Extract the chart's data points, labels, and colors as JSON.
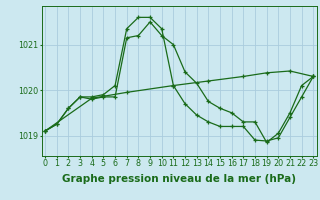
{
  "background_color": "#cce8f0",
  "grid_color": "#aaccdd",
  "line_color": "#1a6b1a",
  "xlabel": "Graphe pression niveau de la mer (hPa)",
  "xlabel_fontsize": 7.5,
  "tick_fontsize": 5.8,
  "yticks": [
    1019,
    1020,
    1021
  ],
  "xticks": [
    0,
    1,
    2,
    3,
    4,
    5,
    6,
    7,
    8,
    9,
    10,
    11,
    12,
    13,
    14,
    15,
    16,
    17,
    18,
    19,
    20,
    21,
    22,
    23
  ],
  "xlim": [
    -0.3,
    23.3
  ],
  "ylim": [
    1018.55,
    1021.85
  ],
  "series1_x": [
    0,
    1,
    2,
    3,
    4,
    5,
    6,
    7,
    8,
    9,
    10,
    11,
    12,
    13,
    14,
    15,
    16,
    17,
    18,
    19,
    20,
    21,
    22,
    23
  ],
  "series1_y": [
    1019.1,
    1019.25,
    1019.6,
    1019.85,
    1019.8,
    1019.85,
    1019.85,
    1021.15,
    1021.2,
    1021.5,
    1021.2,
    1021.0,
    1020.4,
    1020.15,
    1019.75,
    1019.6,
    1019.5,
    1019.3,
    1019.3,
    1018.85,
    1019.05,
    1019.5,
    1020.1,
    1020.3
  ],
  "series2_x": [
    0,
    1,
    2,
    3,
    4,
    5,
    6,
    7,
    8,
    9,
    10,
    11,
    12,
    13,
    14,
    15,
    16,
    17,
    18,
    19,
    20,
    21,
    22,
    23
  ],
  "series2_y": [
    1019.1,
    1019.25,
    1019.6,
    1019.85,
    1019.85,
    1019.9,
    1020.1,
    1021.35,
    1021.6,
    1021.6,
    1021.35,
    1020.1,
    1019.7,
    1019.45,
    1019.3,
    1019.2,
    1019.2,
    1019.2,
    1018.9,
    1018.88,
    1018.95,
    1019.4,
    1019.85,
    1020.3
  ],
  "series3_x": [
    0,
    4,
    7,
    11,
    14,
    17,
    19,
    21,
    23
  ],
  "series3_y": [
    1019.1,
    1019.82,
    1019.95,
    1020.1,
    1020.2,
    1020.3,
    1020.38,
    1020.42,
    1020.3
  ]
}
